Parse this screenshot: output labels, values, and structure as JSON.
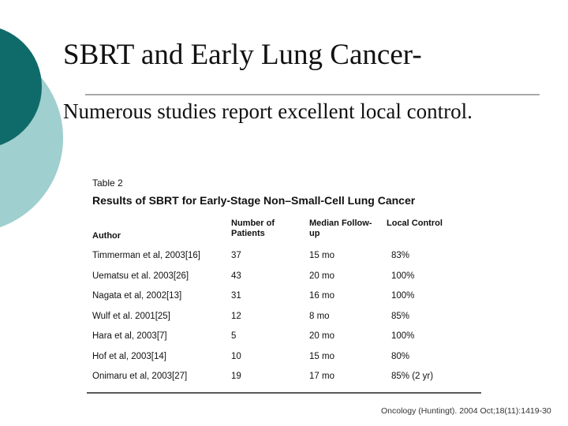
{
  "slide": {
    "title": "SBRT and Early Lung Cancer-",
    "body": "Numerous studies report excellent local control.",
    "table": {
      "caption": "Table 2",
      "title": "Results of SBRT for Early-Stage Non–Small-Cell Lung Cancer",
      "headers": [
        "Author",
        "Number of Patients",
        "Median Follow-up",
        "Local Control"
      ],
      "rows": [
        [
          "Timmerman et al, 2003[16]",
          "37",
          "15 mo",
          "83%"
        ],
        [
          "Uematsu et al. 2003[26]",
          "43",
          "20 mo",
          "100%"
        ],
        [
          "Nagata et al, 2002[13]",
          "31",
          "16 mo",
          "100%"
        ],
        [
          "Wulf et al. 2001[25]",
          "12",
          "8 mo",
          "85%"
        ],
        [
          "Hara et al, 2003[7]",
          "5",
          "20 mo",
          "100%"
        ],
        [
          "Hof et al, 2003[14]",
          "10",
          "15 mo",
          "80%"
        ],
        [
          "Onimaru et al, 2003[27]",
          "19",
          "17 mo",
          "85% (2 yr)"
        ]
      ]
    },
    "citation": "Oncology (Huntingt). 2004 Oct;18(11):1419-30"
  }
}
